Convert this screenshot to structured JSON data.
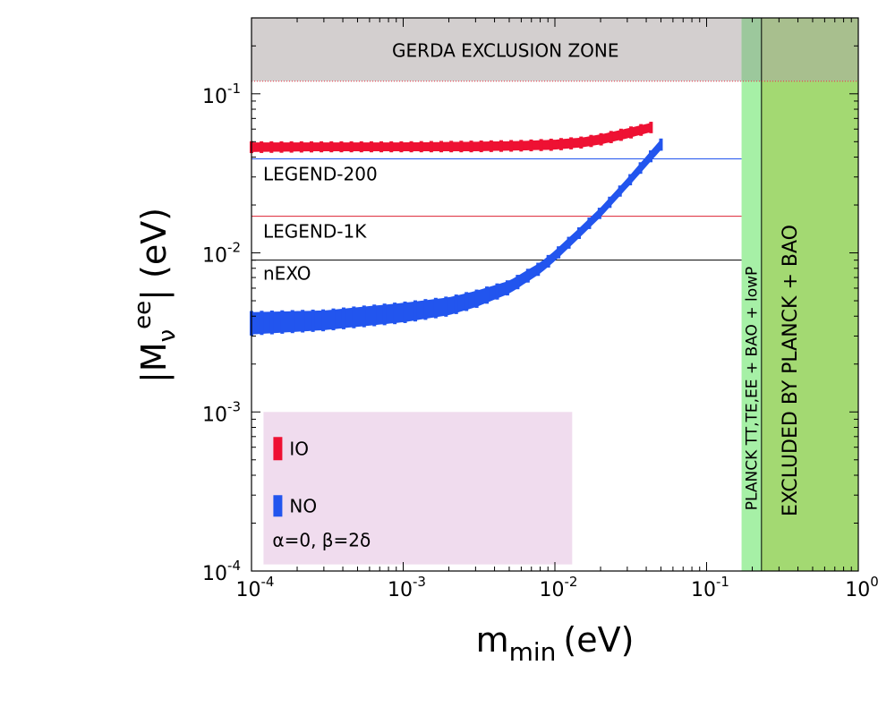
{
  "chart_data": {
    "type": "scatter",
    "x_scale": "log",
    "y_scale": "log",
    "xlim": [
      0.0001,
      1.0
    ],
    "ylim": [
      0.0001,
      0.3
    ],
    "xlabel_main": "m",
    "xlabel_sub": "min",
    "xlabel_unit": "(eV)",
    "ylabel_pre": "|M",
    "ylabel_sub": "ν",
    "ylabel_sup": "ee",
    "ylabel_post": "| (eV)",
    "x_ticks": [
      {
        "value": 0.0001,
        "base": "10",
        "exp": "-4"
      },
      {
        "value": 0.001,
        "base": "10",
        "exp": "-3"
      },
      {
        "value": 0.01,
        "base": "10",
        "exp": "-2"
      },
      {
        "value": 0.1,
        "base": "10",
        "exp": "-1"
      },
      {
        "value": 1.0,
        "base": "10",
        "exp": "0"
      }
    ],
    "y_ticks": [
      {
        "value": 0.0001,
        "base": "10",
        "exp": "-4"
      },
      {
        "value": 0.001,
        "base": "10",
        "exp": "-3"
      },
      {
        "value": 0.01,
        "base": "10",
        "exp": "-2"
      },
      {
        "value": 0.1,
        "base": "10",
        "exp": "-1"
      }
    ],
    "series": [
      {
        "name": "IO",
        "color": "#ee1133",
        "x": [
          0.0001,
          0.0003,
          0.001,
          0.003,
          0.006,
          0.01,
          0.015,
          0.02,
          0.03,
          0.043
        ],
        "y_low": [
          0.0435,
          0.044,
          0.044,
          0.044,
          0.0445,
          0.045,
          0.0465,
          0.0485,
          0.053,
          0.058
        ],
        "y_high": [
          0.049,
          0.049,
          0.049,
          0.0495,
          0.05,
          0.051,
          0.0525,
          0.055,
          0.06,
          0.065
        ]
      },
      {
        "name": "NO",
        "color": "#2255ee",
        "x": [
          0.0001,
          0.0003,
          0.001,
          0.002,
          0.003,
          0.005,
          0.008,
          0.01,
          0.015,
          0.02,
          0.03,
          0.05
        ],
        "y_low": [
          0.0031,
          0.0033,
          0.0037,
          0.0041,
          0.0046,
          0.0056,
          0.0075,
          0.009,
          0.013,
          0.017,
          0.026,
          0.045
        ],
        "y_high": [
          0.0042,
          0.0043,
          0.0048,
          0.0052,
          0.0057,
          0.0066,
          0.0086,
          0.0102,
          0.0146,
          0.019,
          0.029,
          0.051
        ]
      }
    ],
    "sensitivity_lines": [
      {
        "label": "LEGEND-200",
        "value": 0.039,
        "color": "#2255ee"
      },
      {
        "label": "LEGEND-1K",
        "value": 0.017,
        "color": "#dd2233"
      },
      {
        "label": "nEXO",
        "value": 0.009,
        "color": "#000000"
      }
    ],
    "regions": {
      "gerda": {
        "label": "GERDA EXCLUSION ZONE",
        "y_min": 0.12,
        "color": "#d3cfcf"
      },
      "planck_lowp": {
        "label": "PLANCK TT,TE,EE + BAO + lowP",
        "x_min": 0.17,
        "color": "#a6f0a6"
      },
      "planck_bao": {
        "label": "EXCLUDED BY PLANCK + BAO",
        "x_min": 0.23,
        "color": "#a3d972"
      }
    },
    "legend": {
      "entries": [
        {
          "label": "IO",
          "color": "#ee1133"
        },
        {
          "label": "NO",
          "color": "#2255ee"
        }
      ],
      "note": "α=0, β=2δ",
      "placement": "bottom-left",
      "background": "#f0dcee"
    }
  }
}
